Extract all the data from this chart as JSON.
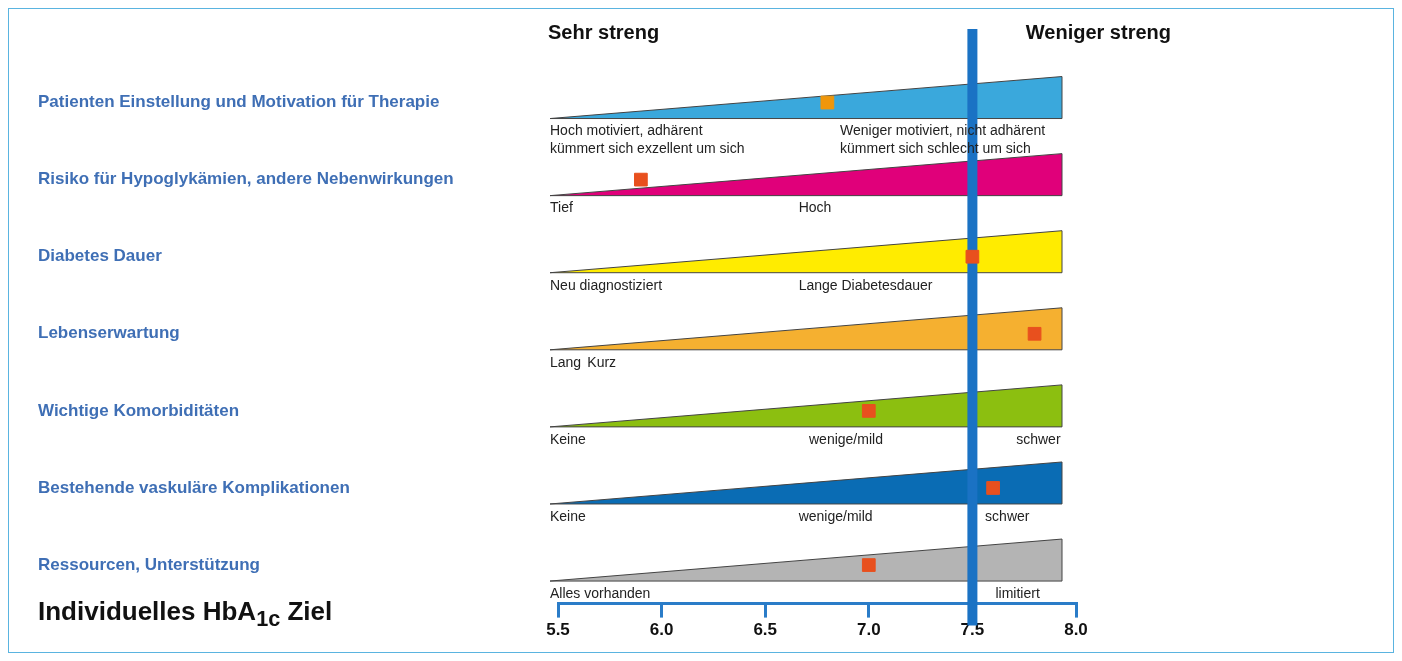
{
  "chart_data": {
    "type": "scatter",
    "orientation": "horizontal",
    "xlabel": "Individuelles HbA$_{1c}$ Ziel",
    "marker": "square",
    "categories": [
      "Patienten Einstellung und Motivation für Therapie",
      "Risiko für Hypoglykämien, andere Nebenwirkungen",
      "Diabetes Dauer",
      "Lebenserwartung",
      "Wichtige Komorbiditäten",
      "Bestehende vaskuläre Komplikationen",
      "Ressourcen, Unterstützung"
    ],
    "series": [
      {
        "values": [
          6.8,
          5.9,
          7.5,
          7.8,
          7.0,
          7.6,
          7.0
        ],
        "colors": [
          "#f0960a",
          "#e8501e",
          "#e8501e",
          "#e8501e",
          "#e8501e",
          "#e8501e",
          "#e8501e"
        ]
      }
    ],
    "xlim": [
      5.5,
      8.0
    ],
    "xticks": [
      {
        "value": 5.5,
        "label": "5.5"
      },
      {
        "value": 6,
        "label": "6.0"
      },
      {
        "value": 6.5,
        "label": "6.5"
      },
      {
        "value": 7,
        "label": "7.0"
      },
      {
        "value": 7.5,
        "label": "7.5"
      },
      {
        "value": 8,
        "label": "8.0"
      }
    ],
    "ref_lines": [
      {
        "axis": "x",
        "value": 7.5,
        "color": "#1a72c4"
      }
    ],
    "grid": false,
    "legend": false,
    "annotations": [
      "Sehr streng",
      "Weniger streng",
      "Hoch motiviert, adhärent\nkümmert sich exzellent um sich",
      "Weniger motiviert, nicht adhärent\nkümmert sich schlecht um sich",
      "Tief",
      "Hoch",
      "Neu diagnostiziert",
      "Lange Diabetesdauer",
      "Lang",
      "Kurz",
      "Keine",
      "wenige/mild",
      "schwer",
      "Keine",
      "wenige/mild",
      "schwer",
      "Alles vorhanden",
      "limitiert"
    ]
  }
}
